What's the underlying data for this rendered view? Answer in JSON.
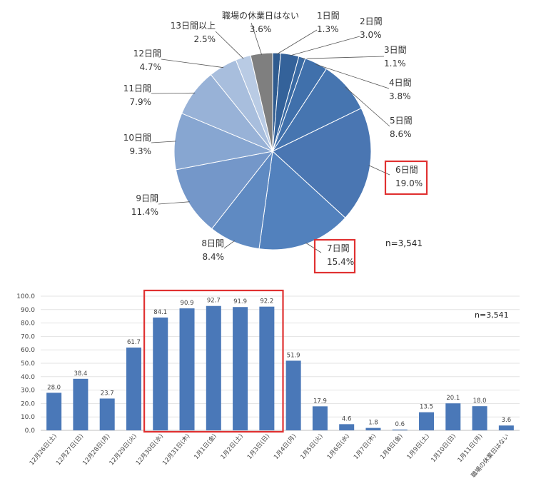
{
  "chart_data": [
    {
      "type": "pie",
      "n_label": "n=3,541",
      "slices": [
        {
          "name": "1日間",
          "value": 1.3,
          "label": "1.3%",
          "color": "#2f5b8f"
        },
        {
          "name": "2日間",
          "value": 3.0,
          "label": "3.0%",
          "color": "#34629a"
        },
        {
          "name": "3日間",
          "value": 1.1,
          "label": "1.1%",
          "color": "#3a6aa3"
        },
        {
          "name": "4日間",
          "value": 3.8,
          "label": "3.8%",
          "color": "#4070ab"
        },
        {
          "name": "5日間",
          "value": 8.6,
          "label": "8.6%",
          "color": "#4675b0"
        },
        {
          "name": "6日間",
          "value": 19.0,
          "label": "19.0%",
          "color": "#4a76b2",
          "highlight": true
        },
        {
          "name": "7日間",
          "value": 15.4,
          "label": "15.4%",
          "color": "#5281bd",
          "highlight": true
        },
        {
          "name": "8日間",
          "value": 8.4,
          "label": "8.4%",
          "color": "#5f8ac2"
        },
        {
          "name": "9日間",
          "value": 11.4,
          "label": "11.4%",
          "color": "#7497c9"
        },
        {
          "name": "10日間",
          "value": 9.3,
          "label": "9.3%",
          "color": "#87a6d1"
        },
        {
          "name": "11日間",
          "value": 7.9,
          "label": "7.9%",
          "color": "#98b2d7"
        },
        {
          "name": "12日間",
          "value": 4.7,
          "label": "4.7%",
          "color": "#a8bedd"
        },
        {
          "name": "13日間以上",
          "value": 2.5,
          "label": "2.5%",
          "color": "#b9cbe4"
        },
        {
          "name": "職場の休業日はない",
          "value": 3.6,
          "label": "3.6%",
          "color": "#7f7f7f"
        }
      ]
    },
    {
      "type": "bar",
      "n_label": "n=3,541",
      "ylim": [
        0,
        100
      ],
      "yticks": [
        "0.0",
        "10.0",
        "20.0",
        "30.0",
        "40.0",
        "50.0",
        "60.0",
        "70.0",
        "80.0",
        "90.0",
        "100.0"
      ],
      "categories": [
        "12月26日(土)",
        "12月27日(日)",
        "12月28日(月)",
        "12月29日(火)",
        "12月30日(水)",
        "12月31日(木)",
        "1月1日(金)",
        "1月2日(土)",
        "1月3日(日)",
        "1月4日(月)",
        "1月5日(火)",
        "1月6日(水)",
        "1月7日(木)",
        "1月8日(金)",
        "1月9日(土)",
        "1月10日(日)",
        "1月11日(月)",
        "職場の休業日はない"
      ],
      "values": [
        28.0,
        38.4,
        23.7,
        61.7,
        84.1,
        90.9,
        92.7,
        91.9,
        92.2,
        51.9,
        17.9,
        4.6,
        1.8,
        0.6,
        13.5,
        20.1,
        18.0,
        3.6
      ],
      "value_labels": [
        "28.0",
        "38.4",
        "23.7",
        "61.7",
        "84.1",
        "90.9",
        "92.7",
        "91.9",
        "92.2",
        "51.9",
        "17.9",
        "4.6",
        "1.8",
        "0.6",
        "13.5",
        "20.1",
        "18.0",
        "3.6"
      ],
      "highlight_range": [
        4,
        8
      ],
      "bar_color": "#4a78b8",
      "highlight_color": "#e03131",
      "grid": true
    }
  ]
}
